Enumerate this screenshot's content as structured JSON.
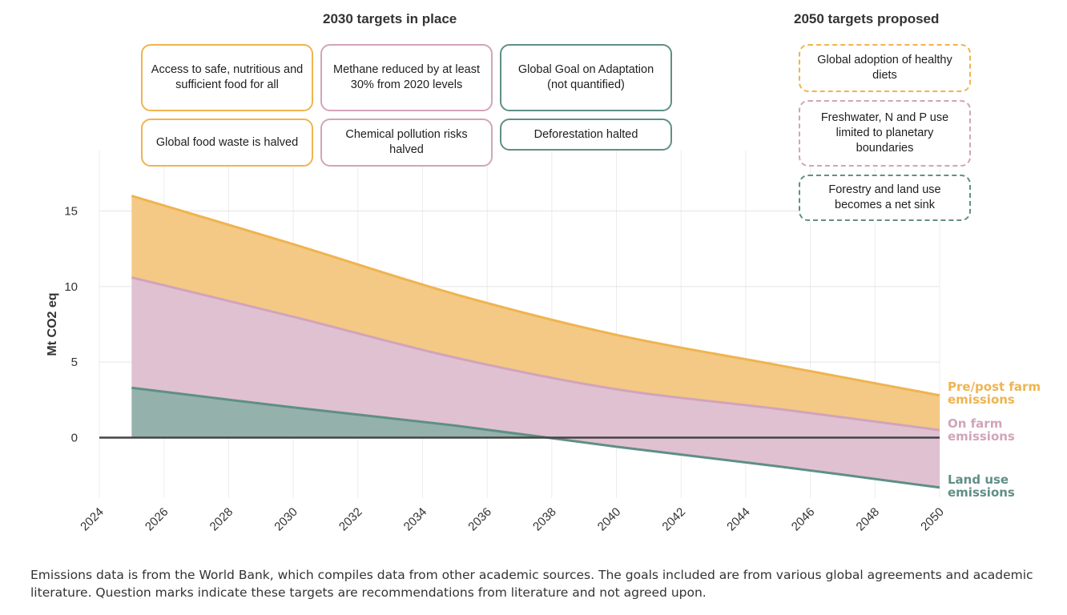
{
  "headings": {
    "left": "2030 targets in place",
    "right": "2050 targets proposed"
  },
  "targets_2030": [
    {
      "text": "Access to safe, nutritious and sufficient food for all",
      "color": "#efb450"
    },
    {
      "text": "Methane reduced by at least 30% from 2020 levels",
      "color": "#d2a4ba"
    },
    {
      "text": "Global Goal on Adaptation (not quantified)",
      "color": "#5f8f86"
    },
    {
      "text": "Global food waste is halved",
      "color": "#efb450"
    },
    {
      "text": "Chemical pollution risks halved",
      "color": "#d2a4ba"
    },
    {
      "text": "Deforestation halted",
      "color": "#5f8f86"
    }
  ],
  "targets_2050": [
    {
      "text": "Global adoption of healthy diets",
      "color": "#efb450"
    },
    {
      "text": "Freshwater, N and P use limited to planetary boundaries",
      "color": "#d2a4ba"
    },
    {
      "text": "Forestry and land use becomes a net sink",
      "color": "#5f8f86"
    }
  ],
  "chart_data": {
    "type": "area",
    "ylabel": "Mt CO2 eq",
    "xlim": [
      2024,
      2050
    ],
    "ylim": [
      -4,
      19
    ],
    "x_ticks": [
      2024,
      2026,
      2028,
      2030,
      2032,
      2034,
      2036,
      2038,
      2040,
      2042,
      2044,
      2046,
      2048,
      2050
    ],
    "y_ticks": [
      0,
      5,
      10,
      15
    ],
    "grid": true,
    "x": [
      2025,
      2030,
      2035,
      2040,
      2045,
      2050
    ],
    "series": [
      {
        "name": "Land use emissions",
        "color": "#5f8f86",
        "fill": "#95b1ac",
        "values": [
          3.3,
          2.0,
          0.8,
          -0.6,
          -1.9,
          -3.3
        ]
      },
      {
        "name": "On farm emissions",
        "color": "#d2a4ba",
        "fill": "#e0c1d1",
        "values": [
          10.6,
          8.0,
          5.3,
          3.2,
          1.9,
          0.5
        ]
      },
      {
        "name": "Pre/post farm emissions",
        "color": "#efb450",
        "fill": "#f3c985",
        "values": [
          16.0,
          12.8,
          9.5,
          6.8,
          4.8,
          2.8
        ]
      }
    ],
    "series_labels": [
      {
        "line1": "Pre/post farm",
        "line2": "emissions"
      },
      {
        "line1": "On farm",
        "line2": "emissions"
      },
      {
        "line1": "Land use",
        "line2": "emissions"
      }
    ]
  },
  "footer": "Emissions data is from the World Bank, which compiles data from other academic sources. The goals included are from various global agreements and academic literature. Question marks indicate these targets are recommendations from literature and not agreed upon."
}
